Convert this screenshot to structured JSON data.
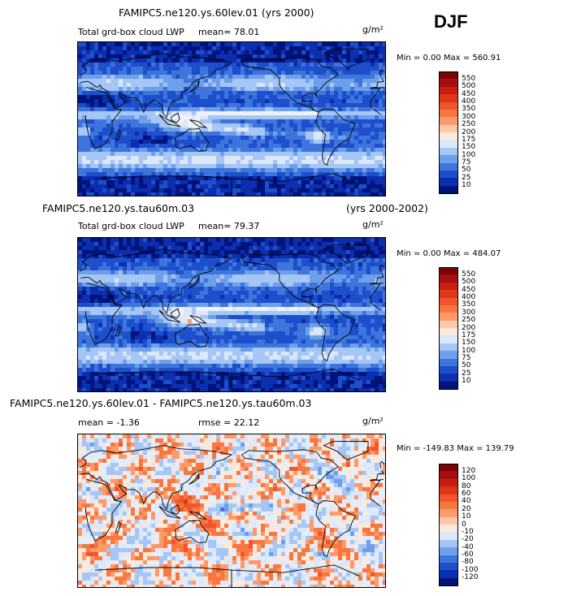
{
  "season": "DJF",
  "panels": [
    {
      "title": "FAMIPC5.ne120.ys.60lev.01 (yrs 2000)",
      "title_right": "",
      "field_label": "Total grd-box cloud LWP",
      "stat_text": "mean=  78.01",
      "units": "g/m²",
      "minmax": "Min =   0.00 Max = 560.91",
      "colorbar_labels": [
        "550",
        "500",
        "450",
        "400",
        "350",
        "300",
        "250",
        "200",
        "175",
        "150",
        "100",
        "75",
        "50",
        "25",
        "10"
      ],
      "palette": "abs"
    },
    {
      "title": "FAMIPC5.ne120.ys.tau60m.03",
      "title_right": "(yrs 2000-2002)",
      "field_label": "Total grd-box cloud LWP",
      "stat_text": "mean=  79.37",
      "units": "g/m²",
      "minmax": "Min =   0.00 Max = 484.07",
      "colorbar_labels": [
        "550",
        "500",
        "450",
        "400",
        "350",
        "300",
        "250",
        "200",
        "175",
        "150",
        "100",
        "75",
        "50",
        "25",
        "10"
      ],
      "palette": "abs"
    },
    {
      "title": "FAMIPC5.ne120.ys.60lev.01 - FAMIPC5.ne120.ys.tau60m.03",
      "title_right": "",
      "field_label": "mean =  -1.36",
      "stat_text": "rmse =  22.12",
      "units": "g/m²",
      "minmax": "Min = -149.83 Max = 139.79",
      "colorbar_labels": [
        "120",
        "100",
        "80",
        "60",
        "40",
        "20",
        "10",
        "0",
        "-10",
        "-20",
        "-40",
        "-60",
        "-80",
        "-100",
        "-120"
      ],
      "palette": "diff"
    }
  ],
  "colors": {
    "abs": [
      "#7a0403",
      "#a50f15",
      "#c81e12",
      "#e0361a",
      "#f0552c",
      "#f7773f",
      "#fc9a6c",
      "#fdc9a8",
      "#fde9dc",
      "#dce8fa",
      "#a6c6f5",
      "#6e9fea",
      "#3d75dc",
      "#1d4fcc",
      "#0c2fb0",
      "#00137a"
    ],
    "diff": [
      "#7a0403",
      "#a50f15",
      "#c81e12",
      "#e0361a",
      "#f0552c",
      "#f7773f",
      "#fc9a6c",
      "#fdc9a8",
      "#fde9dc",
      "#dce8fa",
      "#a6c6f5",
      "#6e9fea",
      "#3d75dc",
      "#1d4fcc",
      "#0c2fb0",
      "#00137a"
    ]
  },
  "chart_data": [
    {
      "type": "heatmap",
      "title": "FAMIPC5.ne120.ys.60lev.01 (yrs 2000)",
      "variable": "Total grd-box cloud LWP",
      "units": "g/m²",
      "season": "DJF",
      "mean": 78.01,
      "min": 0.0,
      "max": 560.91,
      "contour_levels": [
        10,
        25,
        50,
        75,
        100,
        150,
        175,
        200,
        250,
        300,
        350,
        400,
        450,
        500,
        550
      ]
    },
    {
      "type": "heatmap",
      "title": "FAMIPC5.ne120.ys.tau60m.03",
      "years": "(yrs 2000-2002)",
      "variable": "Total grd-box cloud LWP",
      "units": "g/m²",
      "season": "DJF",
      "mean": 79.37,
      "min": 0.0,
      "max": 484.07,
      "contour_levels": [
        10,
        25,
        50,
        75,
        100,
        150,
        175,
        200,
        250,
        300,
        350,
        400,
        450,
        500,
        550
      ]
    },
    {
      "type": "heatmap",
      "title": "FAMIPC5.ne120.ys.60lev.01 - FAMIPC5.ne120.ys.tau60m.03",
      "units": "g/m²",
      "season": "DJF",
      "mean": -1.36,
      "rmse": 22.12,
      "min": -149.83,
      "max": 139.79,
      "contour_levels": [
        -120,
        -100,
        -80,
        -60,
        -40,
        -20,
        -10,
        0,
        10,
        20,
        40,
        60,
        80,
        100,
        120
      ]
    }
  ]
}
